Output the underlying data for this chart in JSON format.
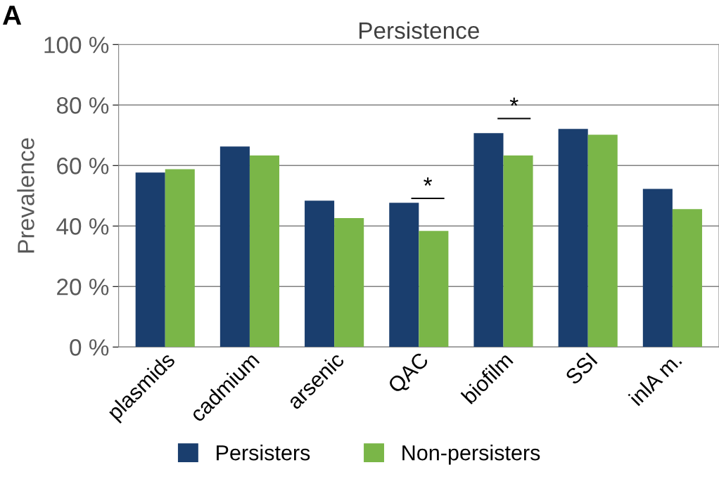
{
  "chart_data": {
    "type": "bar",
    "title": "Persistence",
    "ylabel": "Prevalence",
    "categories": [
      "plasmids",
      "cadmium",
      "arsenic",
      "QAC",
      "biofilm",
      "SSI",
      "inlA m."
    ],
    "series": [
      {
        "name": "Persisters",
        "color": "#1a3e6e",
        "values": [
          57.7,
          66.3,
          48.4,
          47.7,
          70.7,
          72.1,
          52.3
        ]
      },
      {
        "name": "Non-persisters",
        "color": "#7ab648",
        "values": [
          58.8,
          63.3,
          42.6,
          38.4,
          63.3,
          70.2,
          45.6
        ]
      }
    ],
    "ylim": [
      0,
      100
    ],
    "yticks": [
      {
        "value": 0,
        "label": "0 %"
      },
      {
        "value": 20,
        "label": "20 %"
      },
      {
        "value": 40,
        "label": "40 %"
      },
      {
        "value": 60,
        "label": "60 %"
      },
      {
        "value": 80,
        "label": "80 %"
      },
      {
        "value": 100,
        "label": "100 %"
      }
    ],
    "grid": "y",
    "legend": "bottom",
    "annotations": [
      "A",
      "*",
      "*"
    ]
  }
}
